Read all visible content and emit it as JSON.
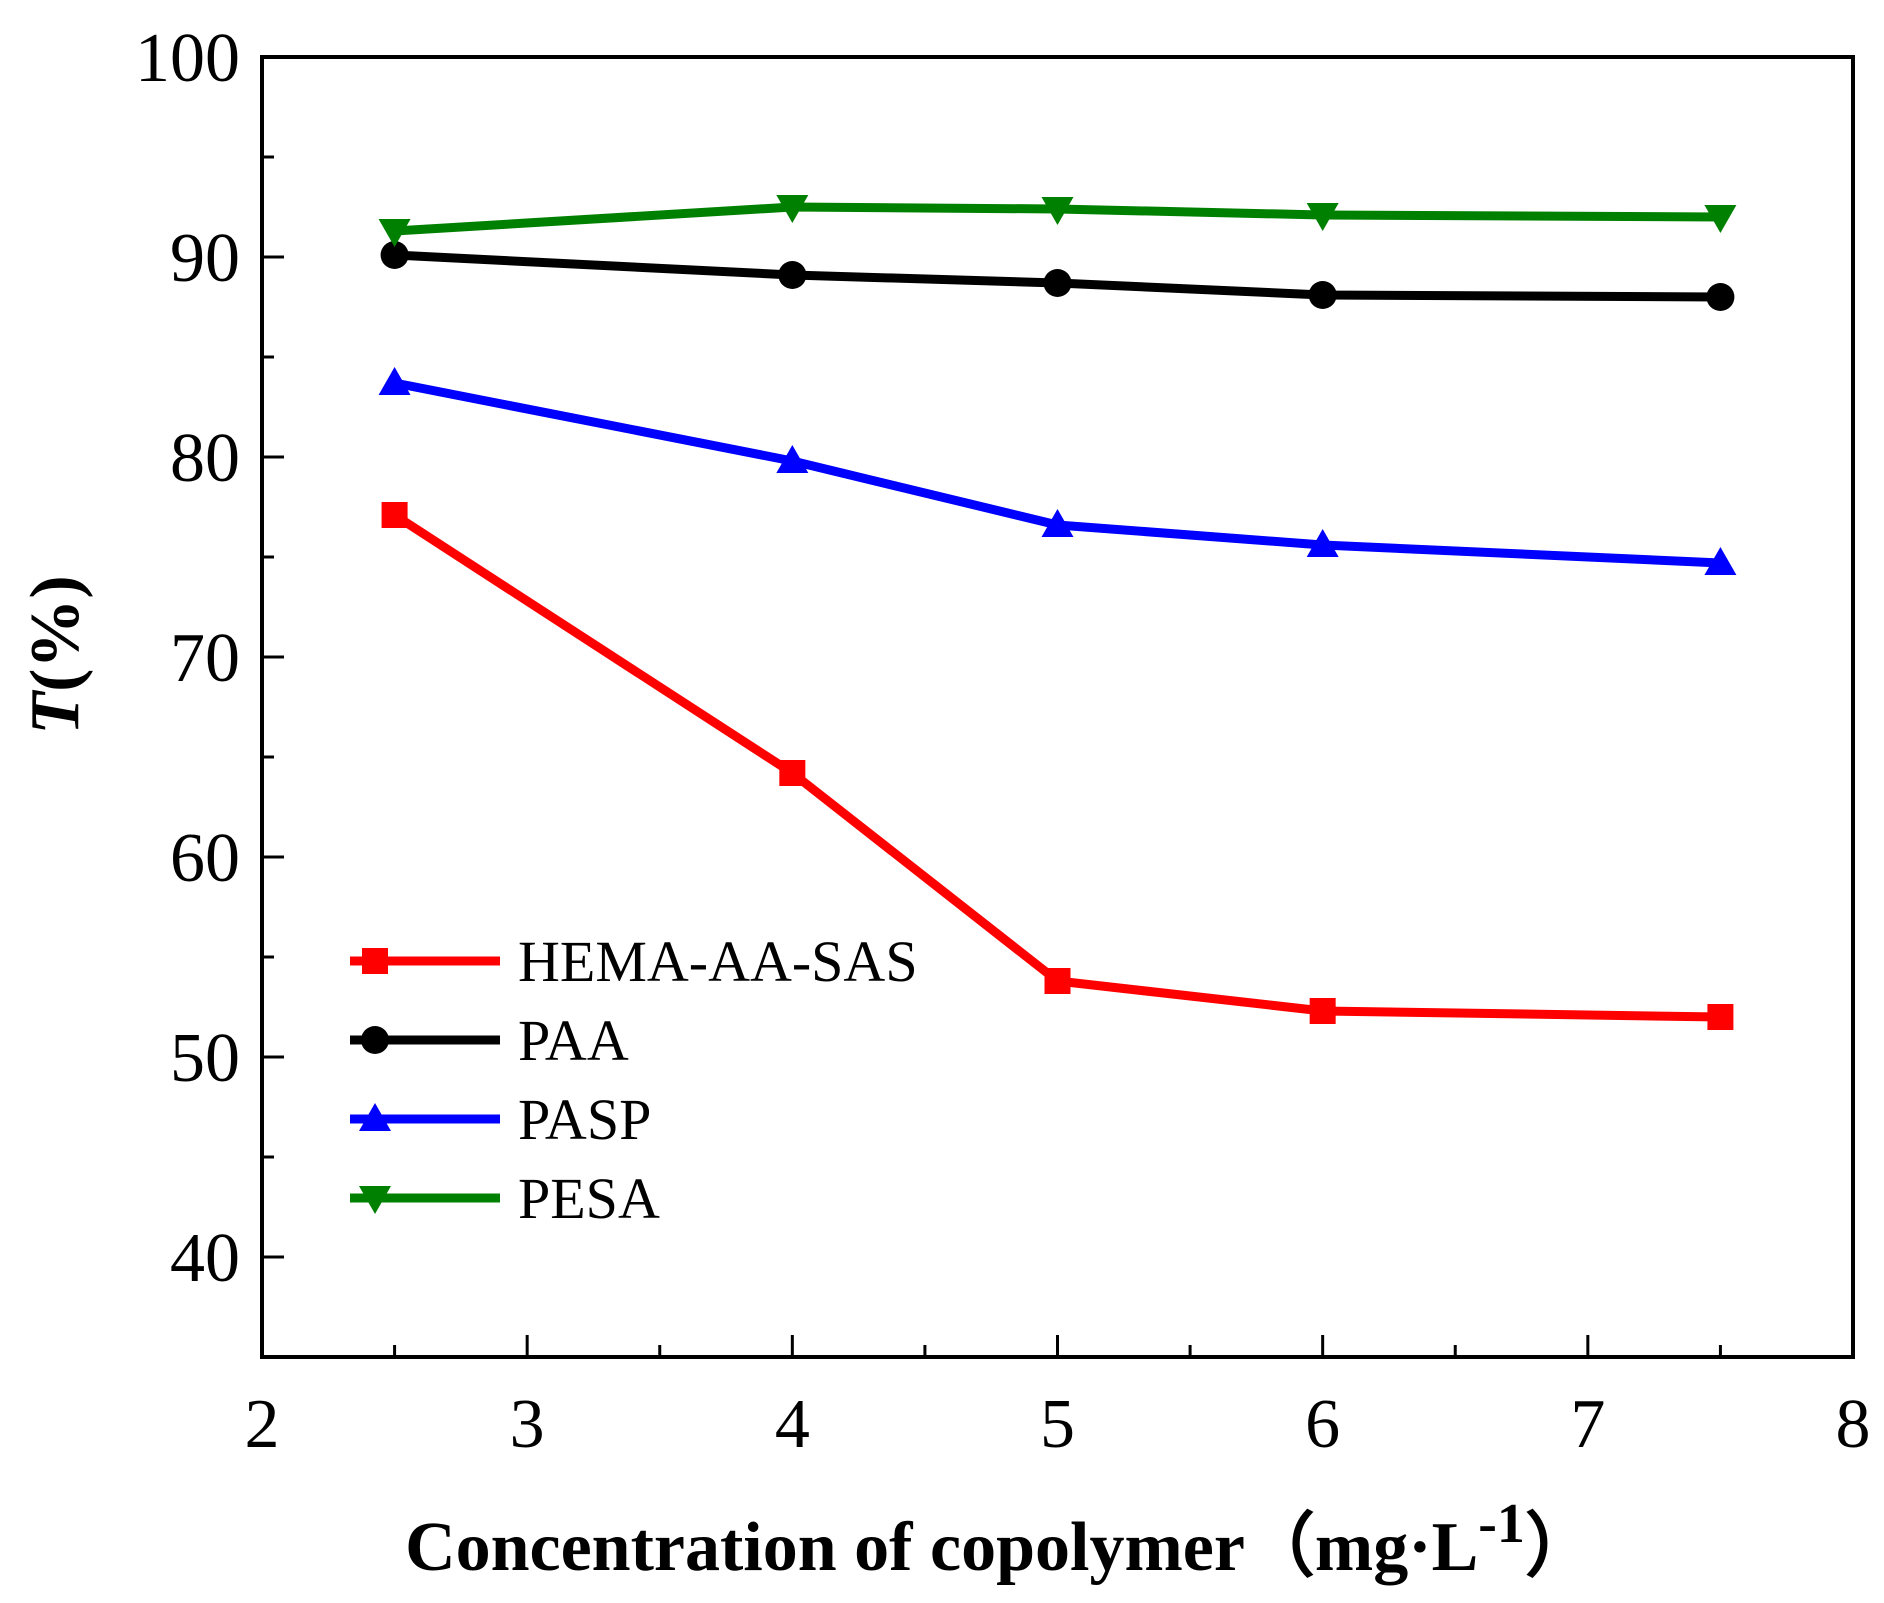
{
  "chart_data": {
    "type": "line",
    "title": "",
    "xlabel": "Concentration of copolymer",
    "xlabel_unit_open": "（",
    "xlabel_unit_main": "mg",
    "xlabel_unit_dot": "·",
    "xlabel_unit_L": "L",
    "xlabel_unit_exp": "-1",
    "xlabel_unit_close": "）",
    "ylabel_italic": "T",
    "ylabel_rest": "(%)",
    "xlim": [
      2,
      8
    ],
    "ylim": [
      35,
      100
    ],
    "x_major_ticks": [
      2,
      3,
      4,
      5,
      6,
      7,
      8
    ],
    "x_tick_labels": [
      "2",
      "3",
      "4",
      "5",
      "6",
      "7",
      "8"
    ],
    "y_major_ticks": [
      40,
      50,
      60,
      70,
      80,
      90,
      100
    ],
    "y_tick_labels": [
      "40",
      "50",
      "60",
      "70",
      "80",
      "90",
      "100"
    ],
    "x_minor_step": 0.5,
    "y_minor_step": 5,
    "grid": false,
    "legend_position": "lower-left",
    "x": [
      2.5,
      4,
      5,
      6,
      7.5
    ],
    "series": [
      {
        "name": "HEMA-AA-SAS",
        "color": "#ff0000",
        "marker": "square",
        "values": [
          77.1,
          64.2,
          53.8,
          52.3,
          52.0
        ]
      },
      {
        "name": "PAA",
        "color": "#000000",
        "marker": "circle",
        "values": [
          90.1,
          89.1,
          88.7,
          88.1,
          88.0
        ]
      },
      {
        "name": "PASP",
        "color": "#0000ff",
        "marker": "triangle-up",
        "values": [
          83.7,
          79.8,
          76.6,
          75.6,
          74.7
        ]
      },
      {
        "name": "PESA",
        "color": "#008000",
        "marker": "triangle-down",
        "values": [
          91.3,
          92.5,
          92.4,
          92.1,
          92.0
        ]
      }
    ]
  }
}
